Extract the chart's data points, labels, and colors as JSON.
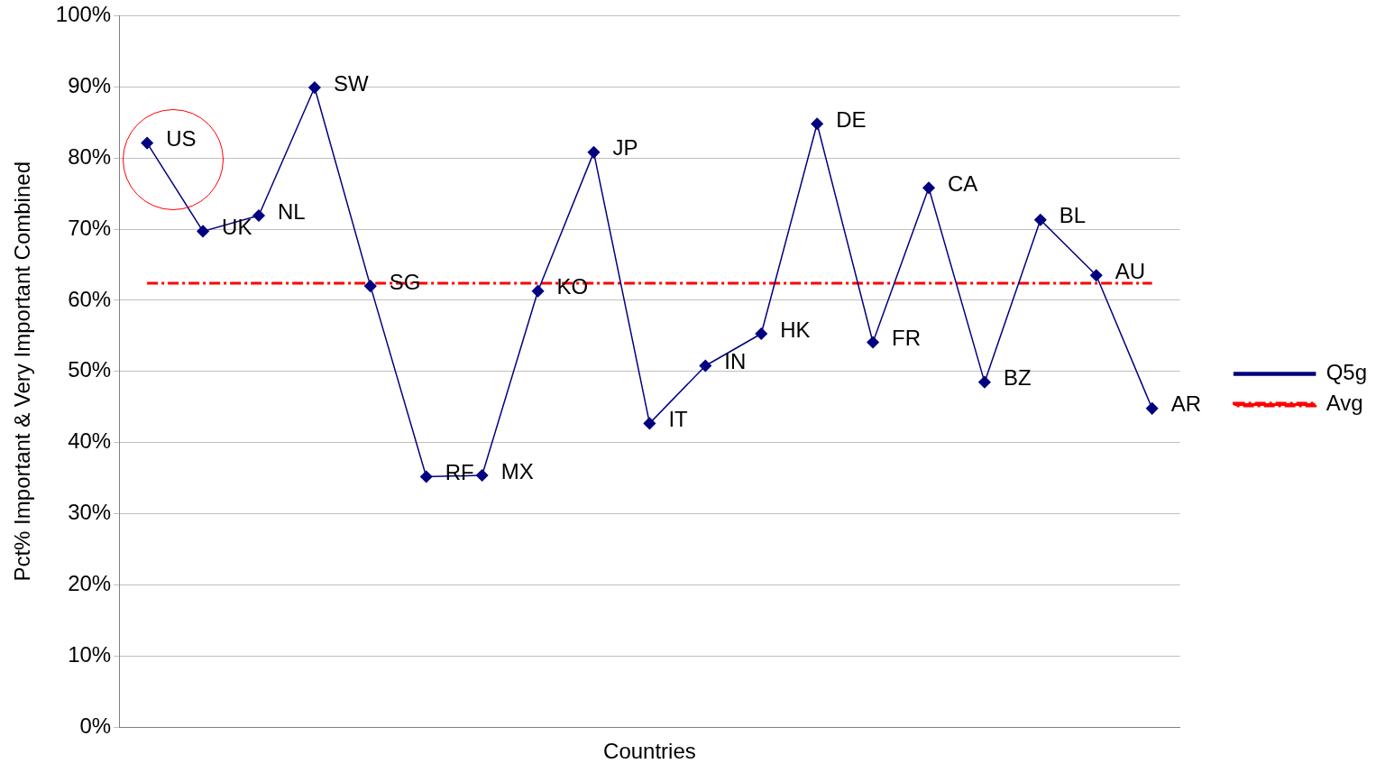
{
  "chart_data": {
    "type": "line",
    "xlabel": "Countries",
    "ylabel": "Pct% Important & Very Important Combined",
    "categories": [
      null,
      null,
      null,
      null,
      null,
      null,
      null,
      null,
      null,
      null,
      null,
      null,
      null,
      null,
      null,
      null,
      null,
      null,
      null
    ],
    "series": [
      {
        "name": "Q5g",
        "color": "#000080",
        "marker": "diamond",
        "line_style": "solid",
        "values": [
          82.1,
          69.7,
          71.9,
          89.9,
          62.0,
          35.2,
          35.4,
          61.3,
          80.8,
          42.7,
          50.8,
          55.3,
          84.8,
          54.1,
          75.8,
          48.5,
          71.3,
          63.5,
          44.8
        ],
        "value_labels": [
          "US",
          "UK",
          "NL",
          "SW",
          "SG",
          "RF",
          "MX",
          "KO",
          "JP",
          "IT",
          "IN",
          "HK",
          "DE",
          "FR",
          "CA",
          "BZ",
          "BL",
          "AU",
          "AR"
        ]
      },
      {
        "name": "Avg",
        "color": "#ff0000",
        "marker": "none",
        "line_style": "dashed",
        "values": [
          62.4,
          62.4,
          62.4,
          62.4,
          62.4,
          62.4,
          62.4,
          62.4,
          62.4,
          62.4,
          62.4,
          62.4,
          62.4,
          62.4,
          62.4,
          62.4,
          62.4,
          62.4,
          62.4
        ]
      }
    ],
    "ylim": [
      0,
      100
    ],
    "yticks": [
      {
        "value": 0,
        "label": "0%"
      },
      {
        "value": 10,
        "label": "10%"
      },
      {
        "value": 20,
        "label": "20%"
      },
      {
        "value": 30,
        "label": "30%"
      },
      {
        "value": 40,
        "label": "40%"
      },
      {
        "value": 50,
        "label": "50%"
      },
      {
        "value": 60,
        "label": "60%"
      },
      {
        "value": 70,
        "label": "70%"
      },
      {
        "value": 80,
        "label": "80%"
      },
      {
        "value": 90,
        "label": "90%"
      },
      {
        "value": 100,
        "label": "100%"
      }
    ],
    "grid": "y",
    "legend": "right",
    "tick_labels": "y"
  }
}
